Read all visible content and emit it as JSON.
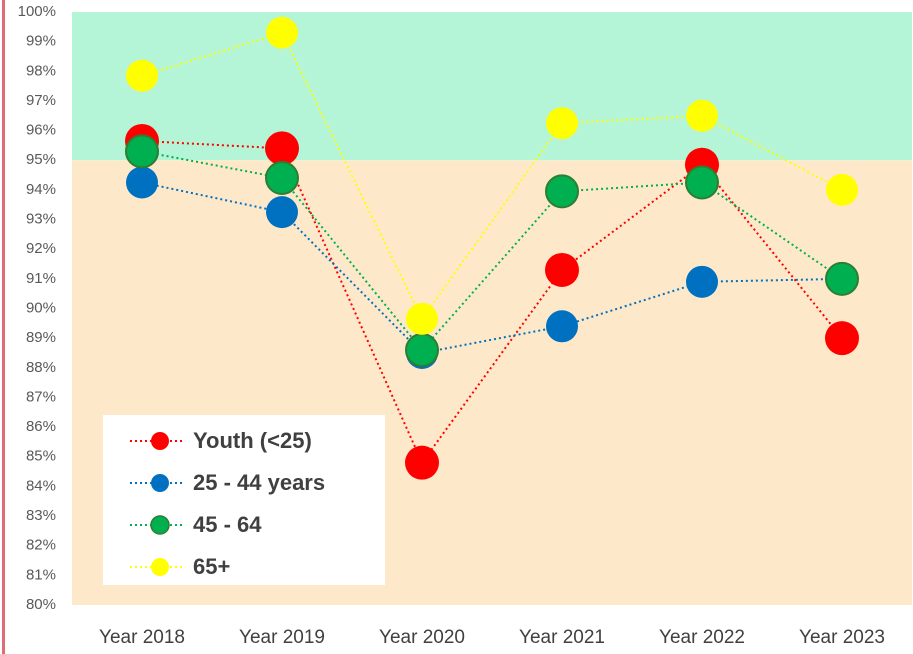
{
  "chart_data": {
    "type": "line",
    "categories": [
      "Year 2018",
      "Year 2019",
      "Year 2020",
      "Year 2021",
      "Year 2022",
      "Year 2023"
    ],
    "series": [
      {
        "name": "Youth (<25)",
        "color": "#ff0000",
        "values": [
          95.65,
          95.4,
          84.8,
          91.3,
          94.85,
          89.0
        ]
      },
      {
        "name": "25 - 44 years",
        "color": "#0070c0",
        "values": [
          94.25,
          93.25,
          88.5,
          89.4,
          90.9,
          91.0
        ]
      },
      {
        "name": "45 - 64",
        "color": "#00b050",
        "values": [
          95.3,
          94.4,
          88.6,
          93.95,
          94.25,
          91.0
        ]
      },
      {
        "name": "65+",
        "color": "#ffff00",
        "values": [
          97.85,
          99.3,
          89.65,
          96.25,
          96.5,
          94.0
        ]
      }
    ],
    "ylim": [
      80,
      100
    ],
    "yticks": [
      {
        "value": 80,
        "label": "80%"
      },
      {
        "value": 81,
        "label": "81%"
      },
      {
        "value": 82,
        "label": "82%"
      },
      {
        "value": 83,
        "label": "83%"
      },
      {
        "value": 84,
        "label": "84%"
      },
      {
        "value": 85,
        "label": "85%"
      },
      {
        "value": 86,
        "label": "86%"
      },
      {
        "value": 87,
        "label": "87%"
      },
      {
        "value": 88,
        "label": "88%"
      },
      {
        "value": 89,
        "label": "89%"
      },
      {
        "value": 90,
        "label": "90%"
      },
      {
        "value": 91,
        "label": "91%"
      },
      {
        "value": 92,
        "label": "92%"
      },
      {
        "value": 93,
        "label": "93%"
      },
      {
        "value": 94,
        "label": "94%"
      },
      {
        "value": 95,
        "label": "95%"
      },
      {
        "value": 96,
        "label": "96%"
      },
      {
        "value": 97,
        "label": "97%"
      },
      {
        "value": 98,
        "label": "98%"
      },
      {
        "value": 99,
        "label": "99%"
      },
      {
        "value": 100,
        "label": "100%"
      }
    ],
    "bands": [
      {
        "from": 95,
        "to": 100,
        "color": "#b3f5d6"
      },
      {
        "from": 80,
        "to": 95,
        "color": "#fde9c9"
      }
    ],
    "line_style": "dotted",
    "legend": "bottom-left"
  }
}
